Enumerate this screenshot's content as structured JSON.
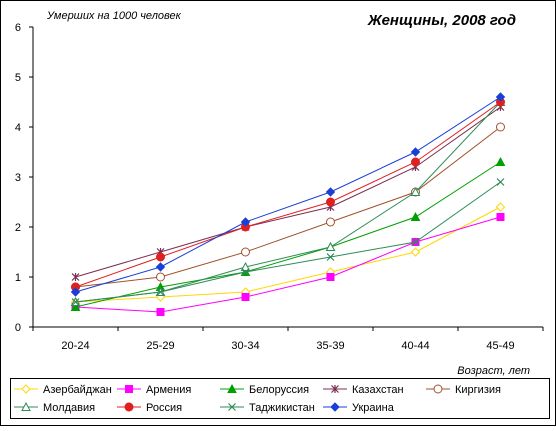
{
  "chart_data": {
    "type": "line",
    "title": "Женщины, 2008 год",
    "ylabel": "Умерших на 1000 человек",
    "xlabel": "Возраст, лет",
    "categories": [
      "20-24",
      "25-29",
      "30-34",
      "35-39",
      "40-44",
      "45-49"
    ],
    "ylim": [
      0,
      6
    ],
    "yticks": [
      0,
      1,
      2,
      3,
      4,
      5,
      6
    ],
    "grid": false,
    "legend_position": "bottom",
    "series": [
      {
        "name": "Азербайджан",
        "color": "#FFD700",
        "marker": "diamond-open",
        "values": [
          0.5,
          0.6,
          0.7,
          1.1,
          1.5,
          2.4
        ]
      },
      {
        "name": "Армения",
        "color": "#FF00FF",
        "marker": "square",
        "values": [
          0.4,
          0.3,
          0.6,
          1.0,
          1.7,
          2.2
        ]
      },
      {
        "name": "Белоруссия",
        "color": "#00A000",
        "marker": "triangle",
        "values": [
          0.4,
          0.8,
          1.1,
          1.6,
          2.2,
          3.3
        ]
      },
      {
        "name": "Казахстан",
        "color": "#7B2C52",
        "marker": "star",
        "values": [
          1.0,
          1.5,
          2.0,
          2.4,
          3.2,
          4.4
        ]
      },
      {
        "name": "Киргизия",
        "color": "#A0522D",
        "marker": "circle-open",
        "values": [
          0.8,
          1.0,
          1.5,
          2.1,
          2.7,
          4.0
        ]
      },
      {
        "name": "Молдавия",
        "color": "#2E8B57",
        "marker": "triangle-open",
        "values": [
          0.5,
          0.7,
          1.2,
          1.6,
          2.7,
          4.5
        ]
      },
      {
        "name": "Россия",
        "color": "#E02020",
        "marker": "circle",
        "values": [
          0.8,
          1.4,
          2.0,
          2.5,
          3.3,
          4.5
        ]
      },
      {
        "name": "Таджикистан",
        "color": "#2E8B57",
        "marker": "x",
        "values": [
          0.5,
          0.7,
          1.1,
          1.4,
          1.7,
          2.9
        ]
      },
      {
        "name": "Украина",
        "color": "#1A3FD8",
        "marker": "diamond",
        "values": [
          0.7,
          1.2,
          2.1,
          2.7,
          3.5,
          4.6
        ]
      }
    ]
  }
}
